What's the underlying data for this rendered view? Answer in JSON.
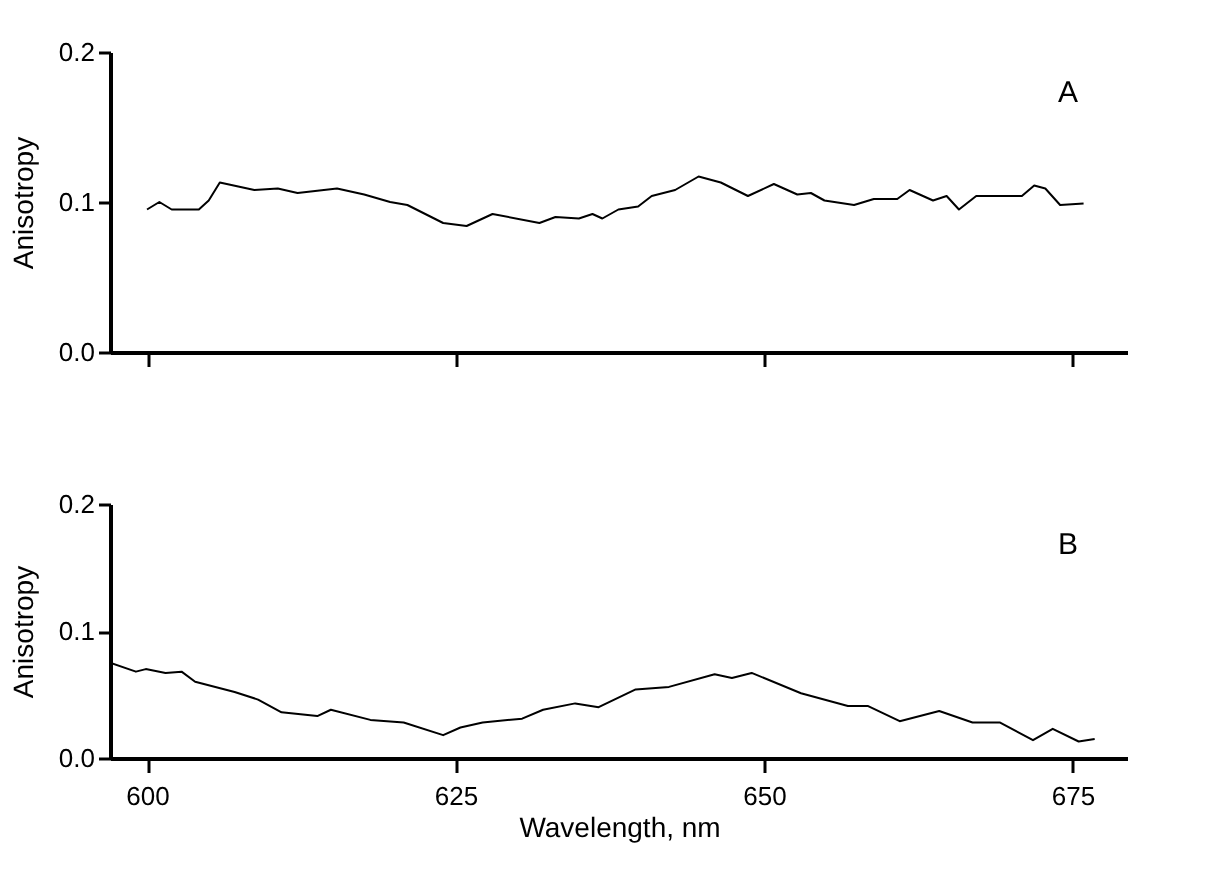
{
  "chart_data": [
    {
      "type": "line",
      "ylabel": "Anisotropy",
      "annotations": [
        "A"
      ],
      "tick_labels": "y",
      "grid": false,
      "xlim": [
        597,
        679.5
      ],
      "xticks": [
        600,
        625,
        650,
        675
      ],
      "ylim": [
        0,
        0.2
      ],
      "yticks": [
        {
          "value": 0,
          "label": "0.0"
        },
        {
          "value": 0.1,
          "label": "0.1"
        },
        {
          "value": 0.2,
          "label": "0.2"
        }
      ],
      "series": [
        {
          "color": "#000000",
          "x": [
            600.0,
            601.0,
            602.0,
            604.2,
            605.0,
            605.9,
            608.7,
            610.6,
            612.2,
            615.4,
            617.6,
            619.7,
            621.1,
            624.0,
            625.9,
            628.0,
            631.8,
            633.1,
            635.0,
            636.1,
            636.9,
            638.2,
            639.8,
            640.9,
            642.8,
            644.7,
            646.5,
            648.7,
            650.8,
            652.7,
            653.8,
            654.9,
            657.3,
            658.9,
            660.8,
            661.8,
            663.7,
            664.8,
            665.8,
            667.2,
            670.9,
            671.9,
            672.8,
            674.0,
            675.9
          ],
          "values": [
            0.095,
            0.1,
            0.095,
            0.095,
            0.101,
            0.113,
            0.108,
            0.109,
            0.106,
            0.109,
            0.105,
            0.1,
            0.098,
            0.086,
            0.084,
            0.092,
            0.086,
            0.09,
            0.089,
            0.092,
            0.089,
            0.095,
            0.097,
            0.104,
            0.108,
            0.117,
            0.113,
            0.104,
            0.112,
            0.105,
            0.106,
            0.101,
            0.098,
            0.102,
            0.102,
            0.108,
            0.101,
            0.104,
            0.095,
            0.104,
            0.104,
            0.111,
            0.109,
            0.098,
            0.099
          ]
        }
      ]
    },
    {
      "type": "line",
      "xlabel": "Wavelength, nm",
      "ylabel": "Anisotropy",
      "annotations": [
        "B"
      ],
      "grid": false,
      "xlim": [
        597,
        679.5
      ],
      "xticks": [
        600,
        625,
        650,
        675
      ],
      "ylim": [
        0,
        0.2
      ],
      "yticks": [
        {
          "value": 0,
          "label": "0.0"
        },
        {
          "value": 0.1,
          "label": "0.1"
        },
        {
          "value": 0.2,
          "label": "0.2"
        }
      ],
      "series": [
        {
          "color": "#000000",
          "x": [
            597.0,
            599.1,
            599.9,
            601.5,
            602.8,
            603.9,
            607.1,
            609.0,
            610.9,
            613.8,
            614.9,
            618.1,
            620.8,
            624.0,
            625.4,
            627.2,
            630.4,
            632.1,
            634.7,
            636.6,
            639.6,
            642.3,
            646.0,
            647.4,
            649.0,
            653.0,
            656.8,
            658.4,
            661.0,
            664.2,
            666.9,
            669.1,
            671.8,
            673.4,
            675.5,
            676.8
          ],
          "values": [
            0.075,
            0.068,
            0.07,
            0.067,
            0.068,
            0.06,
            0.052,
            0.046,
            0.036,
            0.033,
            0.038,
            0.03,
            0.028,
            0.018,
            0.024,
            0.028,
            0.031,
            0.038,
            0.043,
            0.04,
            0.054,
            0.056,
            0.066,
            0.063,
            0.067,
            0.051,
            0.041,
            0.041,
            0.029,
            0.037,
            0.028,
            0.028,
            0.014,
            0.023,
            0.013,
            0.015
          ]
        }
      ]
    }
  ]
}
